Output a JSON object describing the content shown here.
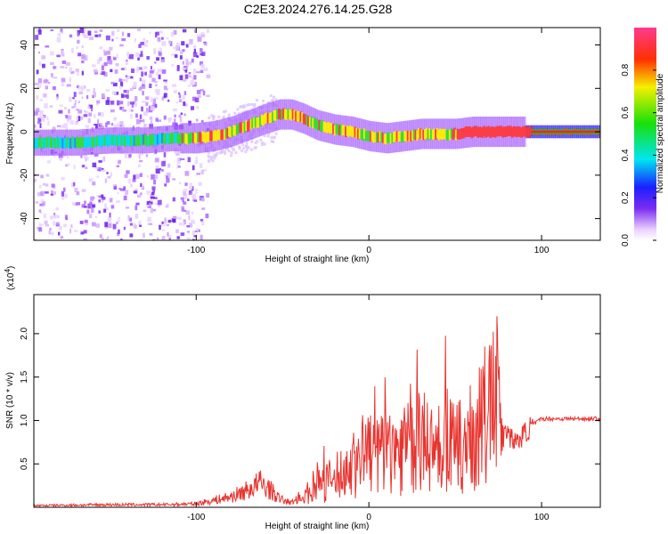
{
  "title": "C2E3.2024.276.14.25.G28",
  "chart_data": [
    {
      "type": "heatmap",
      "title": "C2E3.2024.276.14.25.G28",
      "xlabel": "Height of straight line (km)",
      "ylabel": "Frequency (Hz)",
      "xlim": [
        -194,
        134
      ],
      "ylim": [
        -50,
        48
      ],
      "xticks": [
        -100,
        0,
        100
      ],
      "yticks": [
        -40,
        -20,
        0,
        20,
        40
      ],
      "ridge": {
        "x": [
          -194,
          -170,
          -150,
          -130,
          -115,
          -100,
          -90,
          -80,
          -70,
          -60,
          -52,
          -45,
          -38,
          -30,
          -20,
          -10,
          0,
          10,
          20,
          30,
          40,
          50,
          60,
          70,
          80,
          90,
          95,
          110,
          134
        ],
        "y": [
          -5,
          -5,
          -4,
          -4,
          -3,
          -3,
          -2,
          0,
          3,
          6,
          8,
          8,
          6,
          3,
          1,
          0,
          -2,
          -3,
          -2,
          -1,
          -1,
          -1,
          0,
          0,
          0,
          0,
          0,
          0,
          0
        ]
      },
      "colorbar": {
        "label": "Normalized spectral amplitude",
        "range": [
          0.0,
          1.0
        ],
        "ticks": [
          "0.0",
          "0.2",
          "0.4",
          "0.6",
          "0.8"
        ]
      },
      "grid": false
    },
    {
      "type": "line",
      "xlabel": "Height of straight line (km)",
      "ylabel": "SNR (10 * v/v)",
      "scale_note": "(x10^4)",
      "xlim": [
        -194,
        134
      ],
      "ylim": [
        0,
        2.45
      ],
      "xticks": [
        -100,
        0,
        100
      ],
      "yticks": [
        "0.5",
        "1.0",
        "1.5",
        "2.0"
      ],
      "series": [
        {
          "color": "#e8332e",
          "x": [
            -194,
            -150,
            -120,
            -100,
            -90,
            -80,
            -70,
            -63,
            -58,
            -52,
            -45,
            -38,
            -32,
            -25,
            -18,
            -10,
            -5,
            0,
            5,
            10,
            15,
            20,
            25,
            30,
            35,
            40,
            45,
            50,
            55,
            60,
            65,
            70,
            75,
            78,
            82,
            86,
            90,
            95,
            100,
            110,
            120,
            134
          ],
          "y": [
            0.02,
            0.03,
            0.03,
            0.04,
            0.08,
            0.12,
            0.2,
            0.28,
            0.22,
            0.1,
            0.05,
            0.15,
            0.28,
            0.35,
            0.45,
            0.6,
            0.75,
            0.8,
            0.75,
            0.85,
            0.8,
            0.9,
            0.85,
            0.95,
            0.9,
            0.85,
            1.0,
            0.8,
            0.9,
            1.0,
            1.2,
            1.4,
            1.55,
            1.0,
            0.8,
            0.75,
            0.85,
            0.95,
            1.02,
            1.02,
            1.02,
            1.02
          ]
        }
      ],
      "grid": false
    }
  ]
}
